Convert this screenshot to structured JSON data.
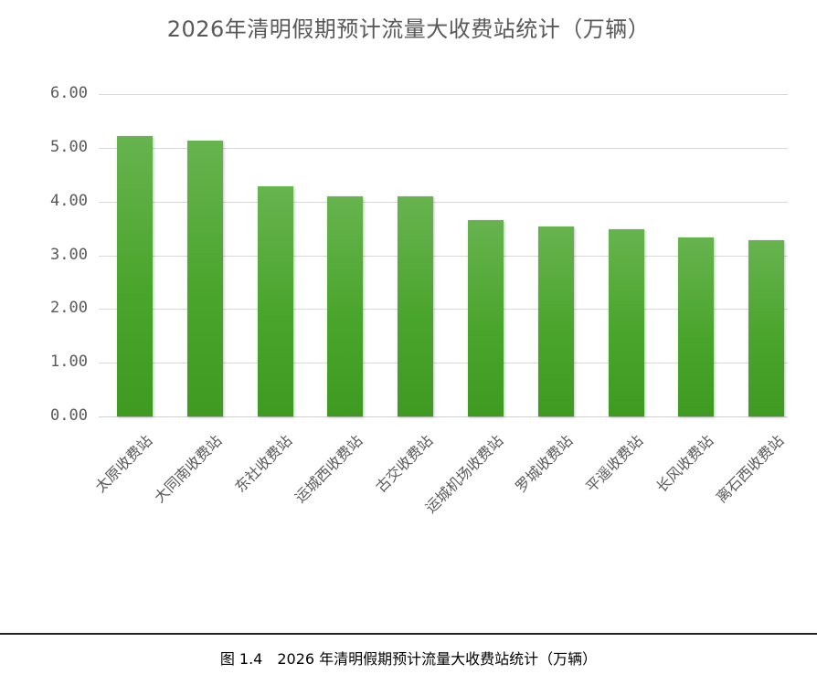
{
  "chart_data": {
    "type": "bar",
    "title": "2026年清明假期预计流量大收费站统计（万辆）",
    "xlabel": "",
    "ylabel": "",
    "ylim": [
      0,
      6
    ],
    "yticks": [
      "0.00",
      "1.00",
      "2.00",
      "3.00",
      "4.00",
      "5.00",
      "6.00"
    ],
    "grid": true,
    "legend": null,
    "categories": [
      "太原收费站",
      "大同南收费站",
      "东社收费站",
      "运城西收费站",
      "古交收费站",
      "运城机场收费站",
      "罗城收费站",
      "平遥收费站",
      "长风收费站",
      "离石西收费站"
    ],
    "values": [
      5.22,
      5.14,
      4.28,
      4.09,
      4.09,
      3.66,
      3.53,
      3.48,
      3.33,
      3.28
    ],
    "bar_color": "#4ea72e"
  },
  "caption": "图 1.4　2026 年清明假期预计流量大收费站统计（万辆）"
}
